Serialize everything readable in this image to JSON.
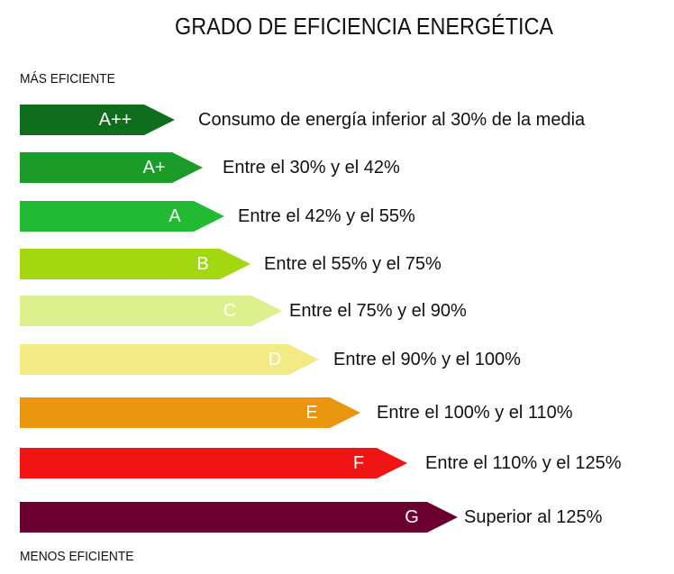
{
  "title": "GRADO DE EFICIENCIA ENERGÉTICA",
  "top_label": "MÁS EFICIENTE",
  "bottom_label": "MENOS EFICIENTE",
  "ratings": [
    {
      "grade": "A++",
      "description": "Consumo de energía inferior al 30% de la media",
      "color": "#0f6e1c",
      "text_color": "#ffffff"
    },
    {
      "grade": "A+",
      "description": "Entre el 30% y el 42%",
      "color": "#1a9b2a",
      "text_color": "#ffffff"
    },
    {
      "grade": "A",
      "description": "Entre el 42% y el 55%",
      "color": "#22b933",
      "text_color": "#ffffff"
    },
    {
      "grade": "B",
      "description": "Entre el 55% y el 75%",
      "color": "#a3d70f",
      "text_color": "#ffffff"
    },
    {
      "grade": "C",
      "description": "Entre el 75% y el 90%",
      "color": "#ddf08e",
      "text_color": "#ffffff"
    },
    {
      "grade": "D",
      "description": "Entre el 90% y el 100%",
      "color": "#f4ea84",
      "text_color": "#ffffff"
    },
    {
      "grade": "E",
      "description": "Entre el 100% y el 110%",
      "color": "#e8960e",
      "text_color": "#ffffff"
    },
    {
      "grade": "F",
      "description": "Entre el 110% y el 125%",
      "color": "#f11414",
      "text_color": "#ffffff"
    },
    {
      "grade": "G",
      "description": "Superior al 125%",
      "color": "#6b0030",
      "text_color": "#ffffff"
    }
  ]
}
